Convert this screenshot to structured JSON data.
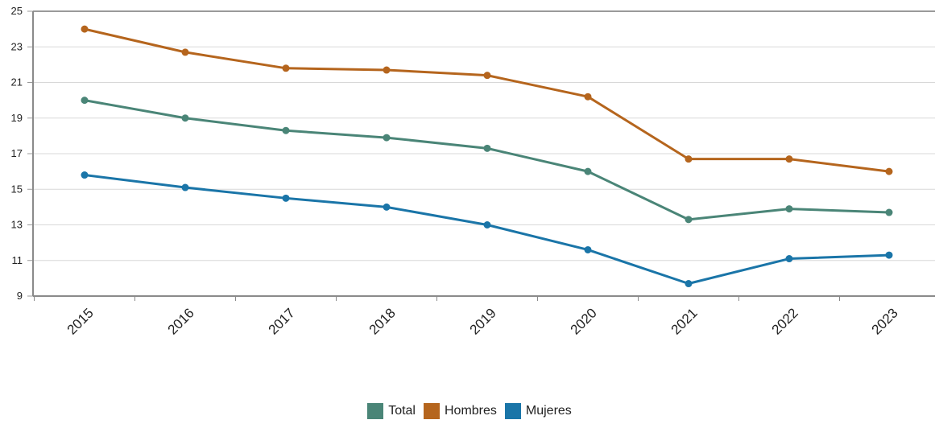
{
  "chart_data": {
    "type": "line",
    "categories": [
      "2015",
      "2016",
      "2017",
      "2018",
      "2019",
      "2020",
      "2021",
      "2022",
      "2023"
    ],
    "series": [
      {
        "name": "Total",
        "color": "#4a8577",
        "values": [
          20.0,
          19.0,
          18.3,
          17.9,
          17.3,
          16.0,
          13.3,
          13.9,
          13.7
        ]
      },
      {
        "name": "Hombres",
        "color": "#b5651d",
        "values": [
          24.0,
          22.7,
          21.8,
          21.7,
          21.4,
          20.2,
          16.7,
          16.7,
          16.0
        ]
      },
      {
        "name": "Mujeres",
        "color": "#1a75a8",
        "values": [
          15.8,
          15.1,
          14.5,
          14.0,
          13.0,
          11.6,
          9.7,
          11.1,
          11.3
        ]
      }
    ],
    "ylim": [
      9,
      25
    ],
    "yticks": [
      "9",
      "11",
      "13",
      "15",
      "17",
      "19",
      "21",
      "23",
      "25"
    ],
    "grid": true,
    "legend_position": "bottom-center",
    "title": "",
    "xlabel": "",
    "ylabel": ""
  }
}
